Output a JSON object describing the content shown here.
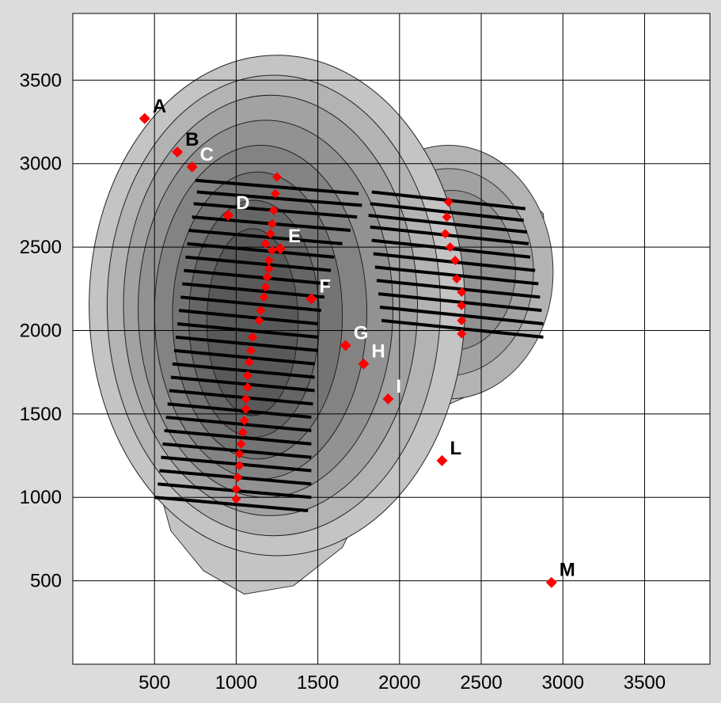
{
  "chart_data": {
    "type": "scatter",
    "title": "",
    "xlabel": "",
    "ylabel": "",
    "xlim": [
      0,
      3900
    ],
    "ylim": [
      0,
      3900
    ],
    "grid": true,
    "x_ticks": [
      500,
      1000,
      1500,
      2000,
      2500,
      3000,
      3500
    ],
    "y_ticks": [
      500,
      1000,
      1500,
      2000,
      2500,
      3000,
      3500
    ],
    "colors": {
      "background": "#dcdcdc",
      "plot_bg": "#ffffff",
      "marker": "#ff0000",
      "grid": "#000000",
      "contour_levels": [
        "#c4c4c4",
        "#b3b3b3",
        "#a2a2a2",
        "#929292",
        "#838383",
        "#747474",
        "#666666",
        "#595959"
      ]
    },
    "points": [
      {
        "label": "A",
        "x": 440,
        "y": 3270,
        "label_color": "#000000"
      },
      {
        "label": "B",
        "x": 640,
        "y": 3070,
        "label_color": "#000000"
      },
      {
        "label": "C",
        "x": 730,
        "y": 2980,
        "label_color": "#ffffff"
      },
      {
        "label": "D",
        "x": 950,
        "y": 2690,
        "label_color": "#ffffff"
      },
      {
        "label": "E",
        "x": 1270,
        "y": 2490,
        "label_color": "#ffffff"
      },
      {
        "label": "F",
        "x": 1460,
        "y": 2190,
        "label_color": "#ffffff"
      },
      {
        "label": "G",
        "x": 1670,
        "y": 1910,
        "label_color": "#ffffff"
      },
      {
        "label": "H",
        "x": 1780,
        "y": 1800,
        "label_color": "#ffffff"
      },
      {
        "label": "I",
        "x": 1930,
        "y": 1590,
        "label_color": "#ffffff"
      },
      {
        "label": "L",
        "x": 2260,
        "y": 1220,
        "label_color": "#000000"
      },
      {
        "label": "M",
        "x": 2930,
        "y": 490,
        "label_color": "#000000"
      }
    ],
    "ridge_points": [
      [
        1250,
        2920
      ],
      [
        1240,
        2820
      ],
      [
        1230,
        2720
      ],
      [
        1220,
        2640
      ],
      [
        1210,
        2580
      ],
      [
        1180,
        2520
      ],
      [
        1220,
        2480
      ],
      [
        1200,
        2420
      ],
      [
        1200,
        2370
      ],
      [
        1190,
        2320
      ],
      [
        1180,
        2260
      ],
      [
        1170,
        2200
      ],
      [
        1150,
        2120
      ],
      [
        1140,
        2060
      ],
      [
        1100,
        1960
      ],
      [
        1090,
        1880
      ],
      [
        1080,
        1810
      ],
      [
        1070,
        1730
      ],
      [
        1070,
        1660
      ],
      [
        1060,
        1590
      ],
      [
        1060,
        1530
      ],
      [
        1050,
        1460
      ],
      [
        1040,
        1390
      ],
      [
        1030,
        1320
      ],
      [
        1020,
        1260
      ],
      [
        1020,
        1190
      ],
      [
        1010,
        1120
      ],
      [
        1000,
        1050
      ],
      [
        1000,
        990
      ]
    ],
    "right_ridge_points": [
      [
        2300,
        2770
      ],
      [
        2290,
        2680
      ],
      [
        2280,
        2580
      ],
      [
        2310,
        2500
      ],
      [
        2340,
        2420
      ],
      [
        2350,
        2310
      ],
      [
        2380,
        2230
      ],
      [
        2380,
        2150
      ],
      [
        2380,
        2060
      ],
      [
        2380,
        1980
      ]
    ],
    "transect_lines": [
      [
        [
          750,
          2900
        ],
        [
          1750,
          2820
        ]
      ],
      [
        [
          760,
          2830
        ],
        [
          1770,
          2750
        ]
      ],
      [
        [
          740,
          2760
        ],
        [
          1740,
          2680
        ]
      ],
      [
        [
          730,
          2680
        ],
        [
          1700,
          2600
        ]
      ],
      [
        [
          710,
          2600
        ],
        [
          1650,
          2520
        ]
      ],
      [
        [
          700,
          2520
        ],
        [
          1600,
          2440
        ]
      ],
      [
        [
          690,
          2440
        ],
        [
          1580,
          2360
        ]
      ],
      [
        [
          680,
          2360
        ],
        [
          1560,
          2280
        ]
      ],
      [
        [
          670,
          2280
        ],
        [
          1540,
          2200
        ]
      ],
      [
        [
          660,
          2200
        ],
        [
          1520,
          2120
        ]
      ],
      [
        [
          650,
          2120
        ],
        [
          1500,
          2040
        ]
      ],
      [
        [
          640,
          2040
        ],
        [
          1500,
          1960
        ]
      ],
      [
        [
          630,
          1960
        ],
        [
          1500,
          1880
        ]
      ],
      [
        [
          620,
          1880
        ],
        [
          1480,
          1800
        ]
      ],
      [
        [
          610,
          1800
        ],
        [
          1480,
          1720
        ]
      ],
      [
        [
          600,
          1720
        ],
        [
          1480,
          1640
        ]
      ],
      [
        [
          590,
          1640
        ],
        [
          1470,
          1560
        ]
      ],
      [
        [
          580,
          1560
        ],
        [
          1460,
          1480
        ]
      ],
      [
        [
          570,
          1480
        ],
        [
          1460,
          1400
        ]
      ],
      [
        [
          560,
          1400
        ],
        [
          1460,
          1320
        ]
      ],
      [
        [
          550,
          1320
        ],
        [
          1460,
          1240
        ]
      ],
      [
        [
          540,
          1240
        ],
        [
          1460,
          1160
        ]
      ],
      [
        [
          530,
          1160
        ],
        [
          1460,
          1080
        ]
      ],
      [
        [
          520,
          1080
        ],
        [
          1460,
          1000
        ]
      ],
      [
        [
          500,
          1000
        ],
        [
          1440,
          920
        ]
      ],
      [
        [
          1830,
          2830
        ],
        [
          2770,
          2730
        ]
      ],
      [
        [
          1820,
          2760
        ],
        [
          2760,
          2660
        ]
      ],
      [
        [
          1810,
          2690
        ],
        [
          2780,
          2590
        ]
      ],
      [
        [
          1820,
          2620
        ],
        [
          2790,
          2520
        ]
      ],
      [
        [
          1830,
          2540
        ],
        [
          2800,
          2440
        ]
      ],
      [
        [
          1840,
          2460
        ],
        [
          2830,
          2360
        ]
      ],
      [
        [
          1850,
          2380
        ],
        [
          2850,
          2280
        ]
      ],
      [
        [
          1860,
          2300
        ],
        [
          2860,
          2200
        ]
      ],
      [
        [
          1870,
          2220
        ],
        [
          2870,
          2120
        ]
      ],
      [
        [
          1880,
          2140
        ],
        [
          2880,
          2040
        ]
      ],
      [
        [
          1890,
          2060
        ],
        [
          2880,
          1960
        ]
      ]
    ],
    "contour_levels": [
      {
        "cx": 1250,
        "cy": 2150,
        "rx": 1150,
        "ry": 1500
      },
      {
        "cx": 1230,
        "cy": 2150,
        "rx": 1020,
        "ry": 1380
      },
      {
        "cx": 1210,
        "cy": 2150,
        "rx": 900,
        "ry": 1260
      },
      {
        "cx": 1180,
        "cy": 2130,
        "rx": 780,
        "ry": 1130
      },
      {
        "cx": 1150,
        "cy": 2110,
        "rx": 650,
        "ry": 1000
      },
      {
        "cx": 1130,
        "cy": 2090,
        "rx": 520,
        "ry": 860
      },
      {
        "cx": 1110,
        "cy": 2070,
        "rx": 400,
        "ry": 710
      },
      {
        "cx": 1100,
        "cy": 2050,
        "rx": 280,
        "ry": 560
      }
    ],
    "right_lobe_levels": [
      {
        "cx": 2300,
        "cy": 2350,
        "rx": 640,
        "ry": 760
      },
      {
        "cx": 2300,
        "cy": 2350,
        "rx": 520,
        "ry": 620
      },
      {
        "cx": 2320,
        "cy": 2360,
        "rx": 390,
        "ry": 480
      }
    ],
    "outer_shape": [
      [
        480,
        1500
      ],
      [
        500,
        1150
      ],
      [
        600,
        800
      ],
      [
        800,
        560
      ],
      [
        1050,
        420
      ],
      [
        1350,
        470
      ],
      [
        1650,
        700
      ],
      [
        1850,
        1100
      ],
      [
        2050,
        1450
      ],
      [
        2400,
        1600
      ],
      [
        2700,
        1850
      ],
      [
        2920,
        2200
      ],
      [
        2880,
        2700
      ],
      [
        2600,
        2950
      ],
      [
        2200,
        3080
      ],
      [
        1900,
        3120
      ],
      [
        1650,
        3350
      ],
      [
        1350,
        3450
      ],
      [
        1050,
        3400
      ],
      [
        800,
        3200
      ],
      [
        580,
        2800
      ],
      [
        480,
        2300
      ]
    ]
  }
}
